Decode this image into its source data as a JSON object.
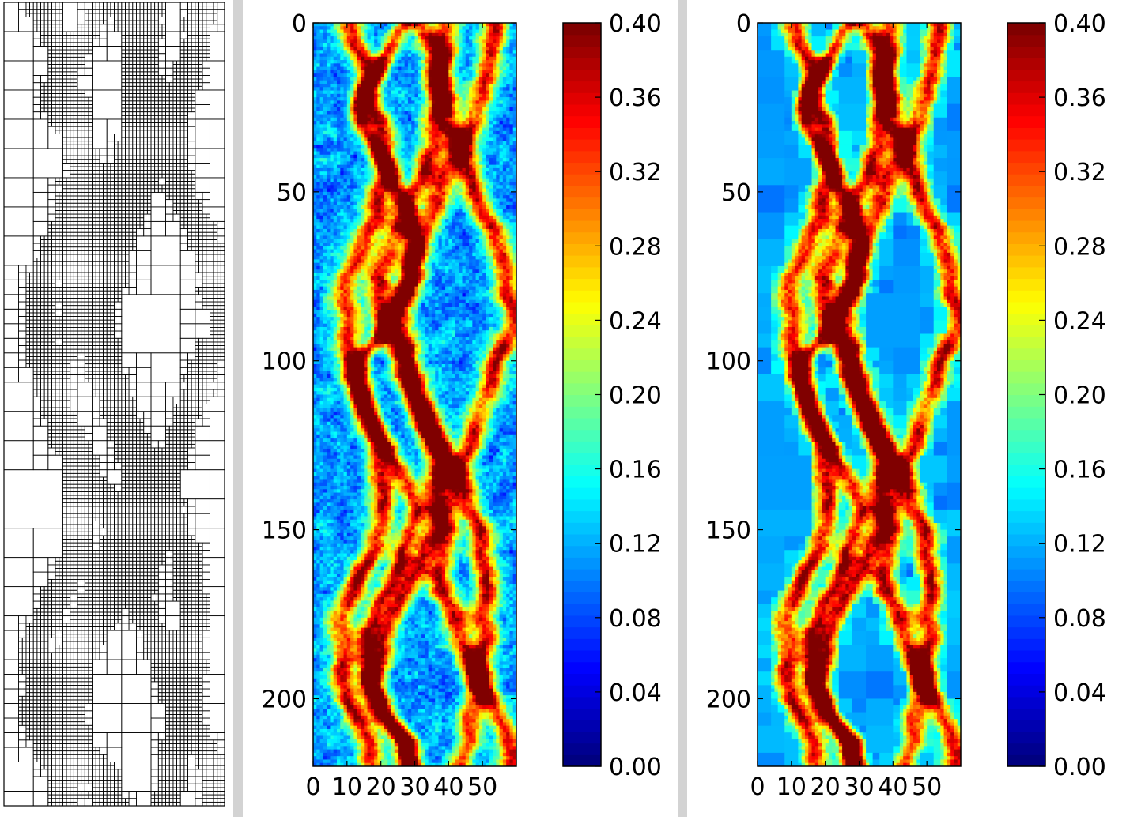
{
  "chart_data": [
    {
      "type": "diagram",
      "panel": "left",
      "description": "quadtree grid"
    },
    {
      "type": "heatmap",
      "panel": "middle",
      "x_ticks": [
        0,
        10,
        20,
        30,
        40,
        50
      ],
      "x_tick_labels": [
        "0",
        "10",
        "20",
        "30",
        "40",
        "50"
      ],
      "y_ticks": [
        0,
        50,
        100,
        150,
        200
      ],
      "y_tick_labels": [
        "0",
        "50",
        "100",
        "150",
        "200"
      ],
      "xlim": [
        0,
        60
      ],
      "ylim": [
        220,
        0
      ],
      "colormap": "jet",
      "colorbar": {
        "ticks": [
          0.0,
          0.04,
          0.08,
          0.12,
          0.16,
          0.2,
          0.24,
          0.28,
          0.32,
          0.36,
          0.4
        ],
        "tick_labels": [
          "0.00",
          "0.04",
          "0.08",
          "0.12",
          "0.16",
          "0.20",
          "0.24",
          "0.28",
          "0.32",
          "0.36",
          "0.40"
        ],
        "range": [
          0.0,
          0.4
        ]
      },
      "resolution": "fine"
    },
    {
      "type": "heatmap",
      "panel": "right",
      "x_ticks": [
        0,
        10,
        20,
        30,
        40,
        50
      ],
      "x_tick_labels": [
        "0",
        "10",
        "20",
        "30",
        "40",
        "50"
      ],
      "y_ticks": [
        0,
        50,
        100,
        150,
        200
      ],
      "y_tick_labels": [
        "0",
        "50",
        "100",
        "150",
        "200"
      ],
      "xlim": [
        0,
        60
      ],
      "ylim": [
        220,
        0
      ],
      "colormap": "jet",
      "colorbar": {
        "ticks": [
          0.0,
          0.04,
          0.08,
          0.12,
          0.16,
          0.2,
          0.24,
          0.28,
          0.32,
          0.36,
          0.4
        ],
        "tick_labels": [
          "0.00",
          "0.04",
          "0.08",
          "0.12",
          "0.16",
          "0.20",
          "0.24",
          "0.28",
          "0.32",
          "0.36",
          "0.40"
        ],
        "range": [
          0.0,
          0.4
        ]
      },
      "resolution": "adaptive"
    }
  ]
}
